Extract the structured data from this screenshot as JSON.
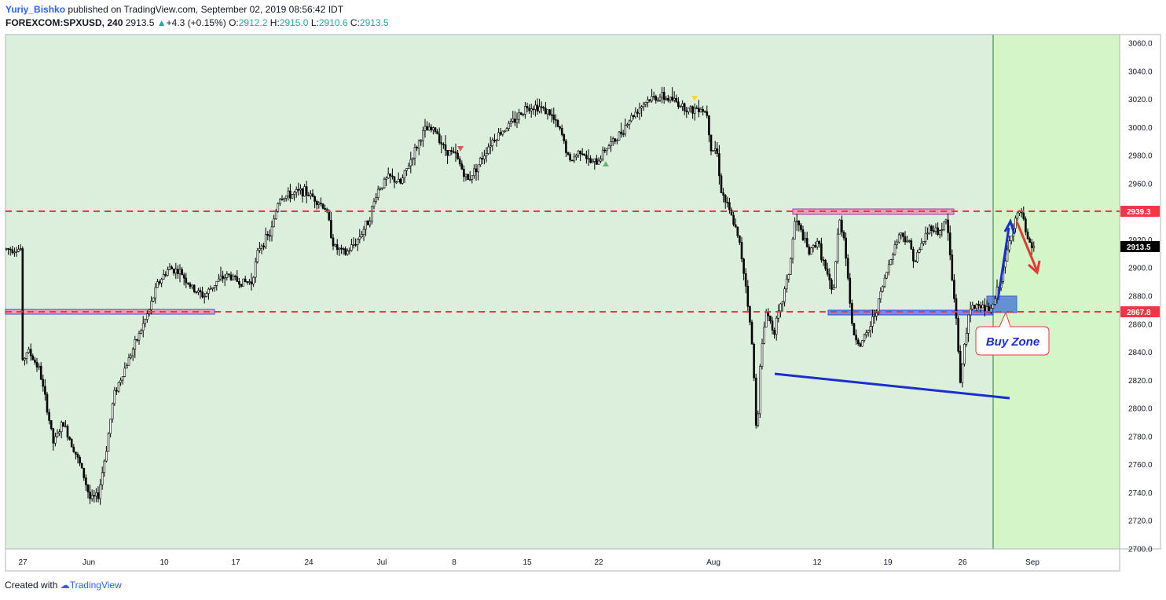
{
  "header": {
    "author": "Yuriy_Bishko",
    "published": "published on TradingView.com, September 02, 2019 08:56:42 IDT",
    "symbol": "FOREXCOM:SPXUSD, 240",
    "last": "2913.5",
    "change": "+4.3 (+0.15%)",
    "o_label": "O:",
    "o_val": "2912.2",
    "h_label": "H:",
    "h_val": "2915.0",
    "l_label": "L:",
    "l_val": "2910.6",
    "c_label": "C:",
    "c_val": "2913.5"
  },
  "footer": {
    "text": "Created with",
    "brand": "TradingView"
  },
  "colors": {
    "chart_bg": "#dcefdc",
    "highlight_bg": "#d4f5c8",
    "red_line": "#f23645",
    "blue_zone": "#2962ff",
    "pink_zone": "#f48fb1",
    "trendline": "#1a2ecc",
    "candle": "#000000"
  },
  "annotations": {
    "buy_zone": "Buy Zone"
  },
  "chart_data": {
    "type": "candlestick",
    "symbol": "FOREXCOM:SPXUSD",
    "interval": "240",
    "x_tick_labels": [
      "27",
      "Jun",
      "10",
      "17",
      "24",
      "Jul",
      "8",
      "15",
      "22",
      "Aug",
      "12",
      "19",
      "26",
      "Sep"
    ],
    "y_tick_labels": [
      "3060.0",
      "3040.0",
      "3020.0",
      "3000.0",
      "2980.0",
      "2960.0",
      "2940.0",
      "2920.0",
      "2900.0",
      "2880.0",
      "2860.0",
      "2840.0",
      "2820.0",
      "2800.0",
      "2780.0",
      "2760.0",
      "2740.0",
      "2720.0",
      "2700.0"
    ],
    "ylim": [
      2700,
      3060
    ],
    "price_tags": [
      {
        "label": "2939.3",
        "value": 2939.3,
        "style": "red"
      },
      {
        "label": "2913.5",
        "value": 2913.5,
        "style": "black"
      },
      {
        "label": "2867.8",
        "value": 2867.8,
        "style": "red"
      }
    ],
    "horizontal_levels": [
      2939.3,
      2867.8
    ],
    "path": [
      [
        27,
        2830
      ],
      [
        35,
        2842
      ],
      [
        50,
        2828
      ],
      [
        60,
        2800
      ],
      [
        68,
        2775
      ],
      [
        80,
        2790
      ],
      [
        95,
        2770
      ],
      [
        105,
        2755
      ],
      [
        115,
        2735
      ],
      [
        125,
        2738
      ],
      [
        135,
        2770
      ],
      [
        145,
        2810
      ],
      [
        160,
        2830
      ],
      [
        175,
        2850
      ],
      [
        190,
        2870
      ],
      [
        200,
        2888
      ],
      [
        215,
        2900
      ],
      [
        230,
        2897
      ],
      [
        245,
        2885
      ],
      [
        260,
        2880
      ],
      [
        275,
        2890
      ],
      [
        290,
        2895
      ],
      [
        305,
        2890
      ],
      [
        320,
        2890
      ],
      [
        330,
        2915
      ],
      [
        345,
        2925
      ],
      [
        355,
        2950
      ],
      [
        370,
        2952
      ],
      [
        385,
        2955
      ],
      [
        400,
        2950
      ],
      [
        415,
        2942
      ],
      [
        425,
        2915
      ],
      [
        440,
        2910
      ],
      [
        455,
        2920
      ],
      [
        470,
        2935
      ],
      [
        480,
        2955
      ],
      [
        495,
        2965
      ],
      [
        510,
        2960
      ],
      [
        525,
        2980
      ],
      [
        540,
        2998
      ],
      [
        555,
        2998
      ],
      [
        565,
        2985
      ],
      [
        580,
        2980
      ],
      [
        595,
        2962
      ],
      [
        610,
        2975
      ],
      [
        625,
        2990
      ],
      [
        640,
        2998
      ],
      [
        655,
        3005
      ],
      [
        670,
        3015
      ],
      [
        685,
        3015
      ],
      [
        700,
        3010
      ],
      [
        715,
        2995
      ],
      [
        725,
        2975
      ],
      [
        740,
        2985
      ],
      [
        750,
        2975
      ],
      [
        760,
        2975
      ],
      [
        770,
        2985
      ],
      [
        785,
        2992
      ],
      [
        800,
        3005
      ],
      [
        815,
        3015
      ],
      [
        825,
        3020
      ],
      [
        840,
        3022
      ],
      [
        855,
        3020
      ],
      [
        870,
        3015
      ],
      [
        880,
        3012
      ],
      [
        890,
        3015
      ],
      [
        900,
        3010
      ],
      [
        905,
        2985
      ],
      [
        912,
        2985
      ],
      [
        918,
        2955
      ],
      [
        925,
        2945
      ],
      [
        935,
        2930
      ],
      [
        942,
        2915
      ],
      [
        950,
        2885
      ],
      [
        958,
        2840
      ],
      [
        963,
        2780
      ],
      [
        968,
        2835
      ],
      [
        975,
        2870
      ],
      [
        985,
        2855
      ],
      [
        995,
        2875
      ],
      [
        1005,
        2900
      ],
      [
        1012,
        2935
      ],
      [
        1020,
        2925
      ],
      [
        1030,
        2910
      ],
      [
        1040,
        2920
      ],
      [
        1050,
        2900
      ],
      [
        1060,
        2880
      ],
      [
        1068,
        2935
      ],
      [
        1075,
        2920
      ],
      [
        1085,
        2855
      ],
      [
        1095,
        2845
      ],
      [
        1105,
        2855
      ],
      [
        1115,
        2870
      ],
      [
        1125,
        2890
      ],
      [
        1135,
        2910
      ],
      [
        1145,
        2925
      ],
      [
        1155,
        2920
      ],
      [
        1165,
        2905
      ],
      [
        1175,
        2920
      ],
      [
        1185,
        2930
      ],
      [
        1195,
        2925
      ],
      [
        1205,
        2935
      ],
      [
        1212,
        2890
      ],
      [
        1218,
        2860
      ],
      [
        1222,
        2815
      ],
      [
        1228,
        2850
      ],
      [
        1235,
        2870
      ],
      [
        1245,
        2875
      ],
      [
        1255,
        2870
      ],
      [
        1262,
        2870
      ],
      [
        1270,
        2885
      ],
      [
        1278,
        2900
      ],
      [
        1285,
        2920
      ],
      [
        1292,
        2935
      ],
      [
        1300,
        2940
      ],
      [
        1307,
        2920
      ],
      [
        1313,
        2915
      ],
      [
        1318,
        2913.5
      ]
    ]
  }
}
